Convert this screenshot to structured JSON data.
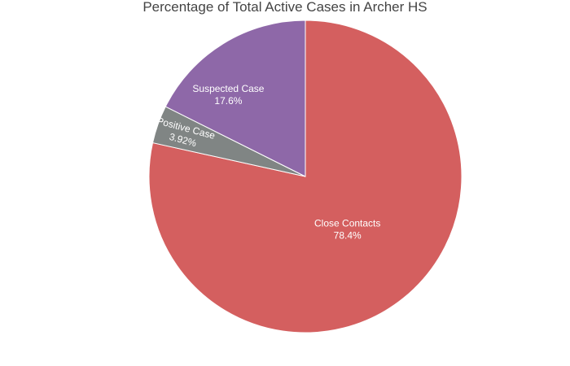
{
  "chart_data": {
    "type": "pie",
    "title": "Percentage of Total Active Cases in Archer HS",
    "slices": [
      {
        "label": "Close Contacts",
        "percent_label": "78.4%",
        "value": 78.4,
        "color": "#d45f5f"
      },
      {
        "label": "Positive Case",
        "percent_label": "3.92%",
        "value": 3.92,
        "color": "#808584"
      },
      {
        "label": "Suspected Case",
        "percent_label": "17.6%",
        "value": 17.6,
        "color": "#8e68a8"
      }
    ],
    "start_angle": 0,
    "direction": "clockwise",
    "legend": false
  }
}
